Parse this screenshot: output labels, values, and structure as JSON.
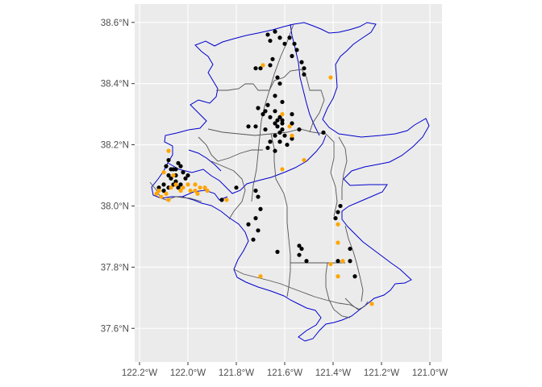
{
  "map": {
    "x_axis": {
      "ticks": [
        {
          "value": -122.2,
          "label": "122.2°W"
        },
        {
          "value": -122.0,
          "label": "122.0°W"
        },
        {
          "value": -121.8,
          "label": "121.8°W"
        },
        {
          "value": -121.6,
          "label": "121.6°W"
        },
        {
          "value": -121.4,
          "label": "121.4°W"
        },
        {
          "value": -121.2,
          "label": "121.2°W"
        },
        {
          "value": -121.0,
          "label": "121.0°W"
        }
      ]
    },
    "y_axis": {
      "ticks": [
        {
          "value": 37.6,
          "label": "37.6°N"
        },
        {
          "value": 37.8,
          "label": "37.8°N"
        },
        {
          "value": 38.0,
          "label": "38.0°N"
        },
        {
          "value": 38.2,
          "label": "38.2°N"
        },
        {
          "value": 38.4,
          "label": "38.4°N"
        },
        {
          "value": 38.6,
          "label": "38.6°N"
        }
      ]
    },
    "xlim": [
      -122.22,
      -120.95
    ],
    "ylim": [
      37.49,
      38.66
    ],
    "colors": {
      "panel": "#ebebeb",
      "gridline": "#ffffff",
      "blue_boundary": "#0000cc",
      "gray_boundary": "#555555",
      "black_points": "#000000",
      "orange_points": "#ffa500"
    },
    "black_points": [
      [
        -121.67,
        38.56
      ],
      [
        -121.66,
        38.54
      ],
      [
        -121.64,
        38.57
      ],
      [
        -121.62,
        38.55
      ],
      [
        -121.6,
        38.53
      ],
      [
        -121.58,
        38.55
      ],
      [
        -121.56,
        38.53
      ],
      [
        -121.55,
        38.51
      ],
      [
        -121.57,
        38.49
      ],
      [
        -121.65,
        38.48
      ],
      [
        -121.66,
        38.46
      ],
      [
        -121.7,
        38.45
      ],
      [
        -121.72,
        38.45
      ],
      [
        -121.53,
        38.47
      ],
      [
        -121.52,
        38.45
      ],
      [
        -121.52,
        38.43
      ],
      [
        -121.63,
        38.42
      ],
      [
        -121.62,
        38.4
      ],
      [
        -121.64,
        38.36
      ],
      [
        -121.67,
        38.33
      ],
      [
        -121.68,
        38.31
      ],
      [
        -121.64,
        38.31
      ],
      [
        -121.63,
        38.28
      ],
      [
        -121.61,
        38.28
      ],
      [
        -121.61,
        38.25
      ],
      [
        -121.6,
        38.23
      ],
      [
        -121.59,
        38.2
      ],
      [
        -121.57,
        38.22
      ],
      [
        -121.54,
        38.25
      ],
      [
        -121.57,
        38.27
      ],
      [
        -121.57,
        38.3
      ],
      [
        -121.71,
        38.32
      ],
      [
        -121.69,
        38.3
      ],
      [
        -121.66,
        38.29
      ],
      [
        -121.64,
        38.27
      ],
      [
        -121.63,
        38.26
      ],
      [
        -121.62,
        38.24
      ],
      [
        -121.61,
        38.27
      ],
      [
        -121.62,
        38.29
      ],
      [
        -121.64,
        38.23
      ],
      [
        -121.66,
        38.21
      ],
      [
        -121.68,
        38.25
      ],
      [
        -121.72,
        38.26
      ],
      [
        -121.75,
        38.26
      ],
      [
        -121.62,
        38.21
      ],
      [
        -121.67,
        38.19
      ],
      [
        -121.64,
        38.18
      ],
      [
        -121.44,
        38.24
      ],
      [
        -121.61,
        38.34
      ],
      [
        -122.08,
        38.15
      ],
      [
        -122.09,
        38.13
      ],
      [
        -122.07,
        38.12
      ],
      [
        -122.06,
        38.12
      ],
      [
        -122.04,
        38.14
      ],
      [
        -122.05,
        38.1
      ],
      [
        -122.07,
        38.09
      ],
      [
        -122.08,
        38.1
      ],
      [
        -122.02,
        38.11
      ],
      [
        -122.01,
        38.09
      ],
      [
        -122.03,
        38.07
      ],
      [
        -122.05,
        38.08
      ],
      [
        -122.06,
        38.07
      ],
      [
        -122.08,
        38.06
      ],
      [
        -122.1,
        38.07
      ],
      [
        -122.12,
        38.06
      ],
      [
        -122.1,
        38.05
      ],
      [
        -122.03,
        38.13
      ],
      [
        -122.05,
        38.12
      ],
      [
        -122.04,
        38.06
      ],
      [
        -122.0,
        38.1
      ],
      [
        -121.8,
        38.06
      ],
      [
        -121.72,
        38.05
      ],
      [
        -121.71,
        38.03
      ],
      [
        -121.7,
        37.99
      ],
      [
        -121.72,
        37.96
      ],
      [
        -121.75,
        37.94
      ],
      [
        -121.71,
        37.92
      ],
      [
        -121.73,
        37.89
      ],
      [
        -121.63,
        37.85
      ],
      [
        -121.54,
        37.87
      ],
      [
        -121.53,
        37.86
      ],
      [
        -121.54,
        37.84
      ],
      [
        -121.51,
        37.82
      ],
      [
        -121.39,
        37.96
      ],
      [
        -121.38,
        37.98
      ],
      [
        -121.37,
        38.0
      ],
      [
        -121.38,
        37.82
      ],
      [
        -121.33,
        37.82
      ],
      [
        -121.31,
        37.77
      ],
      [
        -121.33,
        37.86
      ],
      [
        -121.86,
        38.02
      ]
    ],
    "orange_points": [
      [
        -121.69,
        38.46
      ],
      [
        -121.41,
        38.42
      ],
      [
        -122.08,
        38.18
      ],
      [
        -121.61,
        38.12
      ],
      [
        -121.52,
        38.15
      ],
      [
        -121.58,
        38.26
      ],
      [
        -121.57,
        38.23
      ],
      [
        -121.61,
        38.3
      ],
      [
        -121.84,
        38.02
      ],
      [
        -121.7,
        37.77
      ],
      [
        -121.38,
        37.88
      ],
      [
        -121.38,
        37.94
      ],
      [
        -121.36,
        37.82
      ],
      [
        -121.41,
        37.81
      ],
      [
        -121.38,
        37.77
      ],
      [
        -121.24,
        37.68
      ],
      [
        -122.1,
        38.11
      ],
      [
        -122.06,
        38.1
      ],
      [
        -122.05,
        38.07
      ],
      [
        -122.07,
        38.06
      ],
      [
        -122.09,
        38.04
      ],
      [
        -122.12,
        38.05
      ],
      [
        -122.11,
        38.03
      ],
      [
        -122.13,
        38.04
      ],
      [
        -122.02,
        38.06
      ],
      [
        -122.0,
        38.07
      ],
      [
        -121.99,
        38.05
      ],
      [
        -121.97,
        38.05
      ],
      [
        -121.97,
        38.07
      ],
      [
        -121.95,
        38.06
      ],
      [
        -121.96,
        38.04
      ],
      [
        -121.93,
        38.06
      ],
      [
        -121.92,
        38.05
      ],
      [
        -122.03,
        38.05
      ],
      [
        -122.08,
        38.02
      ]
    ]
  }
}
